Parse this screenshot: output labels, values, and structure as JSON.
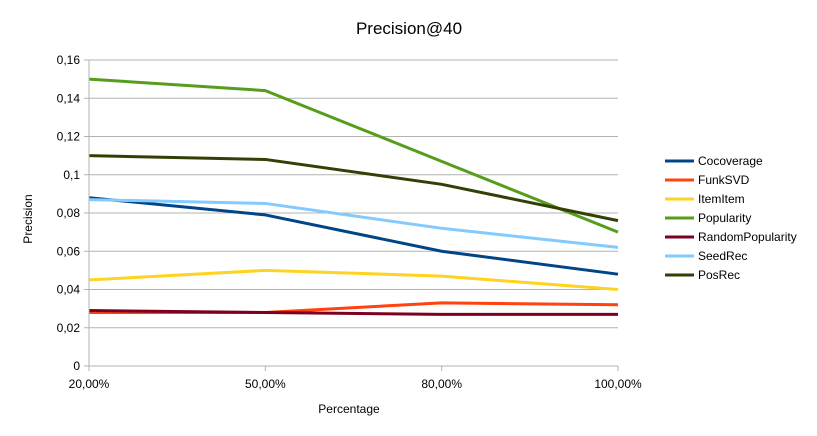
{
  "chart_data": {
    "type": "line",
    "title": "Precision@40",
    "xlabel": "Percentage",
    "ylabel": "Precision",
    "categories": [
      "20,00%",
      "50,00%",
      "80,00%",
      "100,00%"
    ],
    "ylim": [
      0,
      0.16
    ],
    "yticks": [
      "0",
      "0,02",
      "0,04",
      "0,06",
      "0,08",
      "0,1",
      "0,12",
      "0,14",
      "0,16"
    ],
    "grid": true,
    "legend_position": "right",
    "series": [
      {
        "name": "Cocoverage",
        "color": "#004586",
        "values": [
          0.088,
          0.079,
          0.06,
          0.048
        ]
      },
      {
        "name": "FunkSVD",
        "color": "#ff420e",
        "values": [
          0.028,
          0.028,
          0.033,
          0.032
        ]
      },
      {
        "name": "ItemItem",
        "color": "#ffd320",
        "values": [
          0.045,
          0.05,
          0.047,
          0.04
        ]
      },
      {
        "name": "Popularity",
        "color": "#579d1c",
        "values": [
          0.15,
          0.144,
          0.107,
          0.07
        ]
      },
      {
        "name": "RandomPopularity",
        "color": "#7e0021",
        "values": [
          0.029,
          0.028,
          0.027,
          0.027
        ]
      },
      {
        "name": "SeedRec",
        "color": "#83caff",
        "values": [
          0.087,
          0.085,
          0.072,
          0.062
        ]
      },
      {
        "name": "PosRec",
        "color": "#314004",
        "values": [
          0.11,
          0.108,
          0.095,
          0.076
        ]
      }
    ]
  }
}
